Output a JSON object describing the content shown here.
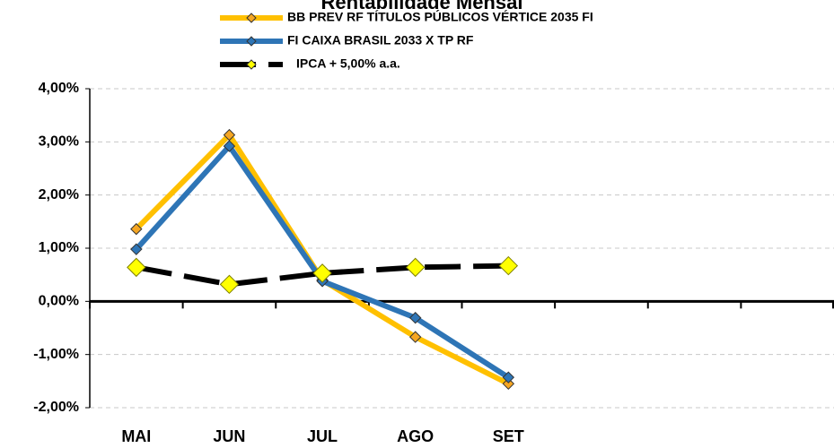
{
  "chart_data": {
    "type": "line",
    "title": "Rentabilidade Mensal",
    "categories": [
      "MAI",
      "JUN",
      "JUL",
      "AGO",
      "SET",
      null,
      null,
      null
    ],
    "series": [
      {
        "name": "BB PREV RF TÍTULOS PÚBLICOS VÉRTICE 2035 FI",
        "color": "#ffc000",
        "marker_color": "#f5a623",
        "values": [
          1.36,
          3.13,
          0.4,
          -0.67,
          -1.55,
          null,
          null,
          null
        ]
      },
      {
        "name": "FI CAIXA BRASIL 2033 X TP RF",
        "color": "#2e75b6",
        "marker_color": "#2e75b6",
        "values": [
          0.98,
          2.92,
          0.38,
          -0.31,
          -1.43,
          null,
          null,
          null
        ]
      },
      {
        "name": "IPCA + 5,00% a.a.",
        "color": "#000000",
        "marker_color": "#ffff00",
        "dashed": true,
        "values": [
          0.64,
          0.32,
          0.53,
          0.64,
          0.67,
          null,
          null,
          null
        ]
      }
    ],
    "ylim": [
      -2,
      4
    ],
    "yticks": [
      {
        "value": -2,
        "label": "-2,00%"
      },
      {
        "value": -1,
        "label": "-1,00%"
      },
      {
        "value": 0,
        "label": "0,00%"
      },
      {
        "value": 1,
        "label": "1,00%"
      },
      {
        "value": 2,
        "label": "2,00%"
      },
      {
        "value": 3,
        "label": "3,00%"
      },
      {
        "value": 4,
        "label": "4,00%"
      }
    ],
    "grid": true
  }
}
